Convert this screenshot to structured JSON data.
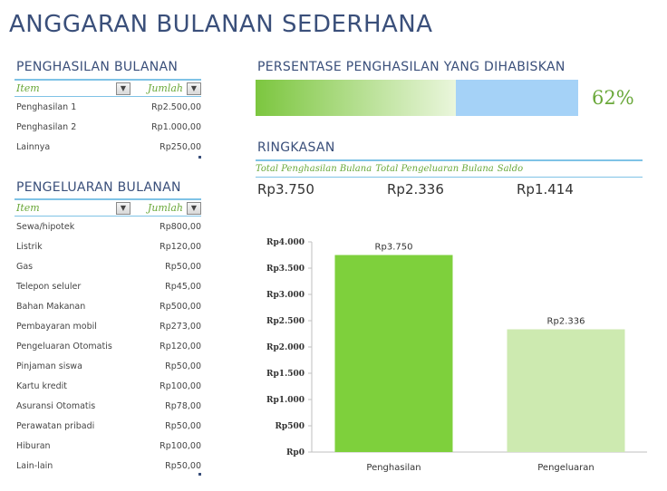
{
  "title": "ANGGARAN BULANAN SEDERHANA",
  "income": {
    "heading": "PENGHASILAN BULANAN",
    "col_item": "Item",
    "col_amount": "Jumlah",
    "rows": [
      {
        "item": "Penghasilan 1",
        "amount": "Rp2.500,00"
      },
      {
        "item": "Penghasilan 2",
        "amount": "Rp1.000,00"
      },
      {
        "item": "Lainnya",
        "amount": "Rp250,00"
      }
    ]
  },
  "expenses": {
    "heading": "PENGELUARAN BULANAN",
    "col_item": "Item",
    "col_amount": "Jumlah",
    "rows": [
      {
        "item": "Sewa/hipotek",
        "amount": "Rp800,00"
      },
      {
        "item": "Listrik",
        "amount": "Rp120,00"
      },
      {
        "item": "Gas",
        "amount": "Rp50,00"
      },
      {
        "item": "Telepon seluler",
        "amount": "Rp45,00"
      },
      {
        "item": "Bahan Makanan",
        "amount": "Rp500,00"
      },
      {
        "item": "Pembayaran mobil",
        "amount": "Rp273,00"
      },
      {
        "item": "Pengeluaran Otomatis",
        "amount": "Rp120,00"
      },
      {
        "item": "Pinjaman siswa",
        "amount": "Rp50,00"
      },
      {
        "item": "Kartu kredit",
        "amount": "Rp100,00"
      },
      {
        "item": "Asuransi Otomatis",
        "amount": "Rp78,00"
      },
      {
        "item": "Perawatan pribadi",
        "amount": "Rp50,00"
      },
      {
        "item": "Hiburan",
        "amount": "Rp100,00"
      },
      {
        "item": "Lain-lain",
        "amount": "Rp50,00"
      }
    ]
  },
  "percent": {
    "heading": "PERSENTASE PENGHASILAN YANG DIHABISKAN",
    "value": 0.62,
    "label": "62%"
  },
  "summary": {
    "heading": "RINGKASAN",
    "col_income": "Total Penghasilan Bulana",
    "col_expense": "Total Pengeluaran Bulana",
    "col_balance": "Saldo",
    "income": "Rp3.750",
    "expense": "Rp2.336",
    "balance": "Rp1.414"
  },
  "chart_data": {
    "type": "bar",
    "categories": [
      "Penghasilan",
      "Pengeluaran"
    ],
    "values": [
      3750,
      2336
    ],
    "data_labels": [
      "Rp3.750",
      "Rp2.336"
    ],
    "colors": [
      "#7ed03c",
      "#cdeab0"
    ],
    "ylim": [
      0,
      4000
    ],
    "yticks": [
      0,
      500,
      1000,
      1500,
      2000,
      2500,
      3000,
      3500,
      4000
    ],
    "ytick_labels": [
      "Rp0",
      "Rp500",
      "Rp1.000",
      "Rp1.500",
      "Rp2.000",
      "Rp2.500",
      "Rp3.000",
      "Rp3.500",
      "Rp4.000"
    ],
    "title": "",
    "xlabel": "",
    "ylabel": "",
    "grid": false,
    "legend": "none"
  },
  "icons": {
    "dropdown": "chevron-down-icon"
  }
}
